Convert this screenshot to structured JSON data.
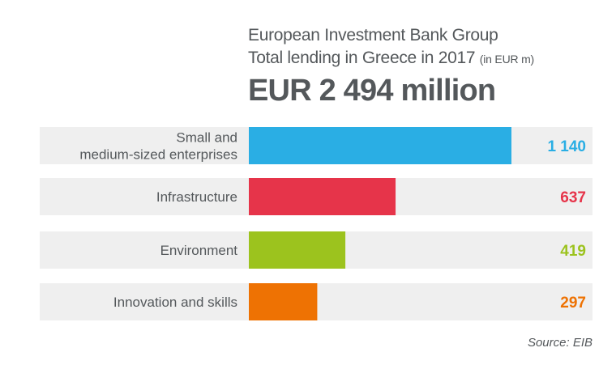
{
  "title": {
    "line1": "European Investment Bank Group",
    "line2": "Total lending in Greece in 2017",
    "unit": "(in EUR m)",
    "total": "EUR 2 494 million"
  },
  "source": "Source: EIB",
  "chart_data": {
    "type": "bar",
    "orientation": "horizontal",
    "categories": [
      "Small and\nmedium-sized enterprises",
      "Infrastructure",
      "Environment",
      "Innovation and skills"
    ],
    "values": [
      1140,
      637,
      419,
      297
    ],
    "value_labels": [
      "1 140",
      "637",
      "419",
      "297"
    ],
    "colors": [
      "#2aaee4",
      "#e6344a",
      "#9cc31e",
      "#ee7203"
    ],
    "title": "European Investment Bank Group",
    "subtitle": "Total lending in Greece in 2017 (in EUR m)",
    "xlabel": "",
    "ylabel": "",
    "grid": false,
    "legend": "none"
  }
}
